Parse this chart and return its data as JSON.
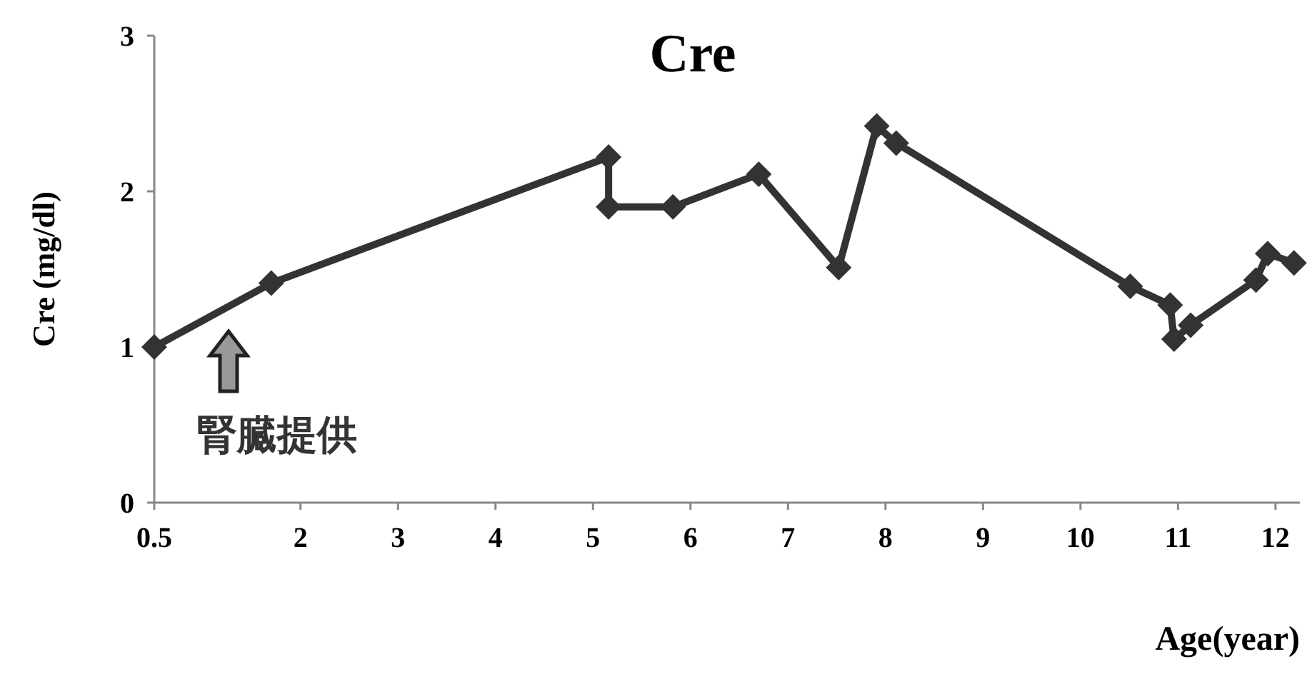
{
  "chart_data": {
    "type": "line",
    "title": "Cre",
    "xlabel": "Age(year)",
    "ylabel": "Cre  (mg/dl)",
    "x": [
      0.5,
      1.7,
      5.16,
      5.16,
      5.82,
      6.7,
      7.52,
      7.91,
      8.11,
      10.51,
      10.92,
      10.96,
      11.13,
      11.8,
      11.92,
      12.19
    ],
    "series": [
      {
        "color": "#333333",
        "values": [
          1.0,
          1.41,
          2.22,
          1.9,
          1.9,
          2.11,
          1.51,
          2.42,
          2.31,
          1.39,
          1.27,
          1.05,
          1.14,
          1.43,
          1.6,
          1.54
        ]
      }
    ],
    "xlim": [
      0.5,
      12.25
    ],
    "ylim": [
      0,
      3
    ],
    "xticks": [
      0.5,
      2,
      3,
      4,
      5,
      6,
      7,
      8,
      9,
      10,
      11,
      12
    ],
    "yticks": [
      0,
      1,
      2,
      3
    ],
    "annotations": [
      "腎臓提供"
    ],
    "marker": "diamond",
    "line_style": "solid",
    "grid": false
  }
}
